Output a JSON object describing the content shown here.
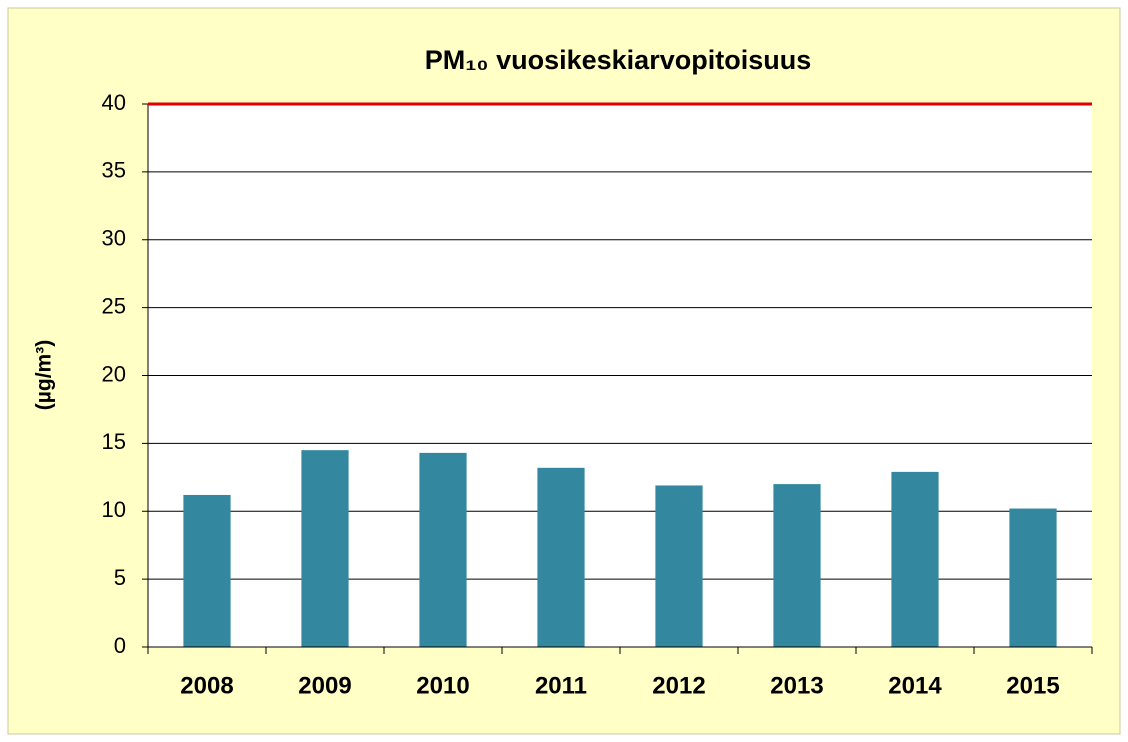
{
  "chart_data": {
    "type": "bar",
    "title": "PM₁₀ vuosikeskiarvopitoisuus",
    "y_label": "(µg/m³)",
    "categories": [
      "2008",
      "2009",
      "2010",
      "2011",
      "2012",
      "2013",
      "2014",
      "2015"
    ],
    "values": [
      11.2,
      14.5,
      14.3,
      13.2,
      11.9,
      12.0,
      12.9,
      10.2
    ],
    "color": "#33889f",
    "ylim": [
      0,
      40
    ],
    "yticks": [
      0,
      5,
      10,
      15,
      20,
      25,
      30,
      35,
      40
    ],
    "grid": true,
    "reference_line": {
      "value": 40,
      "color": "#e00000"
    }
  }
}
